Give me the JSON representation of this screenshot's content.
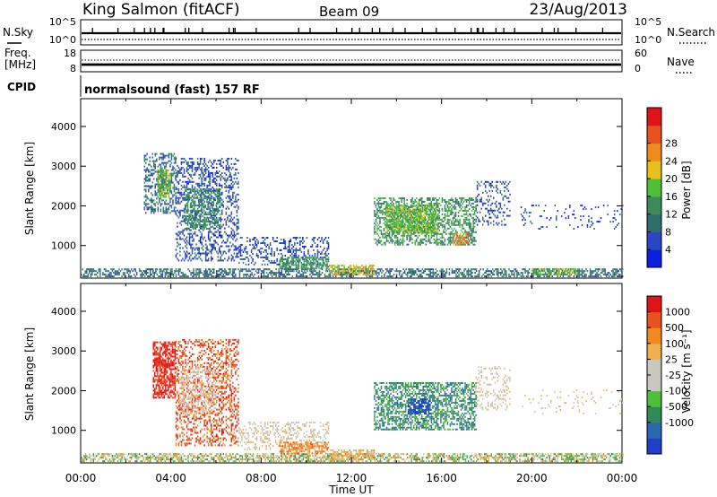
{
  "header": {
    "station": "King Salmon (fitACF)",
    "beam": "Beam 09",
    "date": "23/Aug/2013",
    "cpid_program": "normalsound (fast) 157 RF"
  },
  "noise_panel": {
    "left_label": "N.Sky",
    "right_label": "N.Search",
    "left_ticks": [
      "10^5",
      "10^0"
    ],
    "right_ticks": [
      "10^5",
      "10^0"
    ]
  },
  "freq_panel": {
    "left_label_1": "Freq.",
    "left_label_2": "[MHz]",
    "right_label": "Nave",
    "left_ticks": [
      "18",
      "8"
    ],
    "right_ticks": [
      "60",
      "0"
    ]
  },
  "cpid_label": "CPID",
  "colors": {
    "power": [
      "#0d1ee0",
      "#2a46c4",
      "#2f6e6e",
      "#3a8c58",
      "#4fbf3a",
      "#e8c01c",
      "#f08a1e",
      "#e8521e",
      "#e01414"
    ],
    "velocity": [
      "#e01414",
      "#e8521e",
      "#f08a1e",
      "#f0b050",
      "#c8c8c0",
      "#c8c8c0",
      "#4fbf3a",
      "#2f8a5a",
      "#2a68b0",
      "#1f3fc8"
    ]
  },
  "chart_data": [
    {
      "type": "heatmap",
      "title": "",
      "xlabel": "",
      "ylabel": "Slant Range [km]",
      "x_ticks": [
        "00:00",
        "04:00",
        "08:00",
        "12:00",
        "16:00",
        "20:00",
        "00:00"
      ],
      "y_ticks": [
        "1000",
        "2000",
        "3000",
        "4000"
      ],
      "xlim_hours": [
        0,
        24
      ],
      "ylim_km": [
        180,
        4700
      ],
      "colorbar": {
        "label": "Power [dB]",
        "ticks": [
          "4",
          "8",
          "12",
          "16",
          "20",
          "24",
          "28"
        ],
        "range": [
          0,
          30
        ]
      },
      "scatter_regions": [
        {
          "t0": 0.0,
          "t1": 24.0,
          "r0": 200,
          "r1": 420,
          "density": 0.55,
          "level": 2
        },
        {
          "t0": 2.8,
          "t1": 4.2,
          "r0": 1800,
          "r1": 3300,
          "density": 0.4,
          "level": 2
        },
        {
          "t0": 3.4,
          "t1": 4.0,
          "r0": 2200,
          "r1": 2900,
          "density": 0.7,
          "level": 4
        },
        {
          "t0": 4.2,
          "t1": 7.0,
          "r0": 600,
          "r1": 3200,
          "density": 0.35,
          "level": 1
        },
        {
          "t0": 4.6,
          "t1": 6.2,
          "r0": 1400,
          "r1": 2400,
          "density": 0.5,
          "level": 3
        },
        {
          "t0": 7.0,
          "t1": 11.0,
          "r0": 500,
          "r1": 1200,
          "density": 0.3,
          "level": 1
        },
        {
          "t0": 8.8,
          "t1": 11.0,
          "r0": 400,
          "r1": 700,
          "density": 0.6,
          "level": 3
        },
        {
          "t0": 11.0,
          "t1": 13.0,
          "r0": 250,
          "r1": 500,
          "density": 0.6,
          "level": 5
        },
        {
          "t0": 13.0,
          "t1": 17.5,
          "r0": 1000,
          "r1": 2200,
          "density": 0.5,
          "level": 3
        },
        {
          "t0": 13.5,
          "t1": 15.8,
          "r0": 1300,
          "r1": 2000,
          "density": 0.7,
          "level": 4
        },
        {
          "t0": 16.5,
          "t1": 17.2,
          "r0": 1000,
          "r1": 1300,
          "density": 0.6,
          "level": 6
        },
        {
          "t0": 17.5,
          "t1": 19.0,
          "r0": 1500,
          "r1": 2600,
          "density": 0.2,
          "level": 1
        },
        {
          "t0": 19.5,
          "t1": 24.0,
          "r0": 1400,
          "r1": 2000,
          "density": 0.08,
          "level": 1
        },
        {
          "t0": 20.0,
          "t1": 22.0,
          "r0": 250,
          "r1": 400,
          "density": 0.6,
          "level": 4
        }
      ]
    },
    {
      "type": "heatmap",
      "title": "",
      "xlabel": "Time UT",
      "ylabel": "Slant Range [km]",
      "x_ticks": [
        "00:00",
        "04:00",
        "08:00",
        "12:00",
        "16:00",
        "20:00",
        "00:00"
      ],
      "y_ticks": [
        "1000",
        "2000",
        "3000",
        "4000"
      ],
      "xlim_hours": [
        0,
        24
      ],
      "ylim_km": [
        180,
        4700
      ],
      "colorbar": {
        "label": "Velocity [m s⁻¹]",
        "ticks": [
          "1000",
          "500",
          "100",
          "25",
          "-25",
          "-100",
          "-500",
          "-1000"
        ]
      },
      "scatter_regions": [
        {
          "t0": 0.0,
          "t1": 24.0,
          "r0": 200,
          "r1": 420,
          "density": 0.45,
          "level": 6
        },
        {
          "t0": 0.0,
          "t1": 24.0,
          "r0": 200,
          "r1": 420,
          "density": 0.25,
          "level": 3
        },
        {
          "t0": 3.2,
          "t1": 4.2,
          "r0": 1800,
          "r1": 3200,
          "density": 0.7,
          "level": 0
        },
        {
          "t0": 4.2,
          "t1": 7.0,
          "r0": 600,
          "r1": 3300,
          "density": 0.35,
          "level": 1
        },
        {
          "t0": 4.4,
          "t1": 6.0,
          "r0": 1400,
          "r1": 2600,
          "density": 0.4,
          "level": 4
        },
        {
          "t0": 7.0,
          "t1": 11.0,
          "r0": 500,
          "r1": 1200,
          "density": 0.3,
          "level": 4
        },
        {
          "t0": 8.8,
          "t1": 11.0,
          "r0": 400,
          "r1": 700,
          "density": 0.6,
          "level": 2
        },
        {
          "t0": 11.0,
          "t1": 13.0,
          "r0": 250,
          "r1": 500,
          "density": 0.5,
          "level": 3
        },
        {
          "t0": 13.0,
          "t1": 17.5,
          "r0": 1000,
          "r1": 2200,
          "density": 0.55,
          "level": 7
        },
        {
          "t0": 14.5,
          "t1": 15.5,
          "r0": 1400,
          "r1": 1800,
          "density": 0.7,
          "level": 9
        },
        {
          "t0": 17.5,
          "t1": 19.0,
          "r0": 1500,
          "r1": 2600,
          "density": 0.2,
          "level": 4
        },
        {
          "t0": 19.5,
          "t1": 24.0,
          "r0": 1400,
          "r1": 2000,
          "density": 0.08,
          "level": 4
        }
      ]
    }
  ]
}
